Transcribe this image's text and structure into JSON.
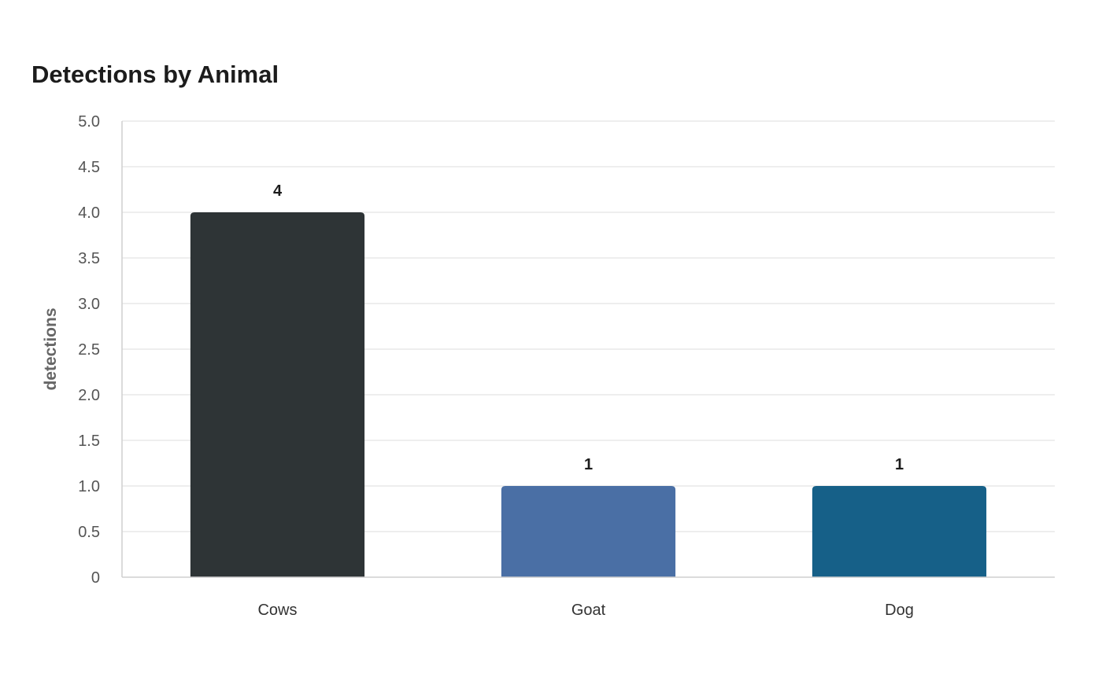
{
  "chart_data": {
    "type": "bar",
    "title": "Detections by Animal",
    "xlabel": "",
    "ylabel": "detections",
    "categories": [
      "Cows",
      "Goat",
      "Dog"
    ],
    "values": [
      4,
      1,
      1
    ],
    "value_labels": [
      "4",
      "1",
      "1"
    ],
    "colors": [
      "#2e3436",
      "#4a6fa5",
      "#166088"
    ],
    "ylim": [
      0,
      5
    ],
    "yticks": [
      0,
      0.5,
      1,
      1.5,
      2,
      2.5,
      3,
      3.5,
      4,
      4.5,
      5
    ],
    "ytick_labels": [
      "0",
      "0.5",
      "1.0",
      "1.5",
      "2.0",
      "2.5",
      "3.0",
      "3.5",
      "4.0",
      "4.5",
      "5.0"
    ],
    "grid": true,
    "legend": "none"
  }
}
